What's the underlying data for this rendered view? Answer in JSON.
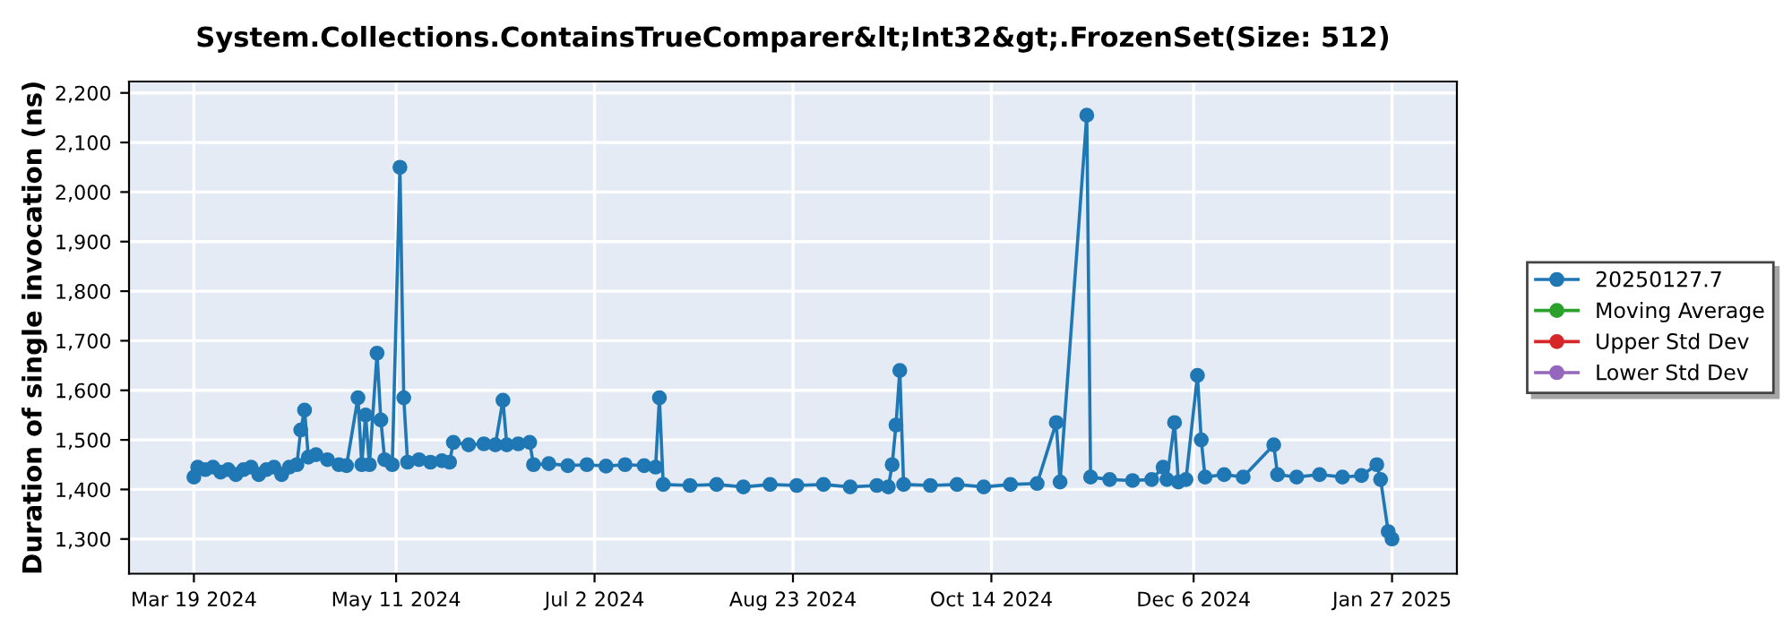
{
  "chart_data": {
    "type": "line",
    "title": "System.Collections.ContainsTrueComparer&lt;Int32&gt;.FrozenSet(Size: 512)",
    "ylabel": "Duration of single invocation (ns)",
    "x": [
      "2024-03-19",
      "2024-03-20",
      "2024-03-22",
      "2024-03-24",
      "2024-03-26",
      "2024-03-28",
      "2024-03-30",
      "2024-04-01",
      "2024-04-03",
      "2024-04-05",
      "2024-04-07",
      "2024-04-09",
      "2024-04-11",
      "2024-04-13",
      "2024-04-15",
      "2024-04-16",
      "2024-04-17",
      "2024-04-18",
      "2024-04-20",
      "2024-04-23",
      "2024-04-26",
      "2024-04-28",
      "2024-05-01",
      "2024-05-02",
      "2024-05-03",
      "2024-05-04",
      "2024-05-06",
      "2024-05-07",
      "2024-05-08",
      "2024-05-10",
      "2024-05-12",
      "2024-05-13",
      "2024-05-14",
      "2024-05-17",
      "2024-05-20",
      "2024-05-23",
      "2024-05-25",
      "2024-05-26",
      "2024-05-30",
      "2024-06-03",
      "2024-06-06",
      "2024-06-08",
      "2024-06-09",
      "2024-06-12",
      "2024-06-15",
      "2024-06-16",
      "2024-06-20",
      "2024-06-25",
      "2024-06-30",
      "2024-07-05",
      "2024-07-10",
      "2024-07-15",
      "2024-07-18",
      "2024-07-19",
      "2024-07-20",
      "2024-07-27",
      "2024-08-03",
      "2024-08-10",
      "2024-08-17",
      "2024-08-24",
      "2024-08-31",
      "2024-09-07",
      "2024-09-14",
      "2024-09-17",
      "2024-09-18",
      "2024-09-19",
      "2024-09-20",
      "2024-09-21",
      "2024-09-28",
      "2024-10-05",
      "2024-10-12",
      "2024-10-19",
      "2024-10-26",
      "2024-10-31",
      "2024-11-01",
      "2024-11-08",
      "2024-11-09",
      "2024-11-14",
      "2024-11-20",
      "2024-11-25",
      "2024-11-28",
      "2024-11-29",
      "2024-12-01",
      "2024-12-02",
      "2024-12-04",
      "2024-12-07",
      "2024-12-08",
      "2024-12-09",
      "2024-12-14",
      "2024-12-19",
      "2024-12-27",
      "2024-12-28",
      "2025-01-02",
      "2025-01-08",
      "2025-01-14",
      "2025-01-19",
      "2025-01-23",
      "2025-01-24",
      "2025-01-26",
      "2025-01-27"
    ],
    "series": [
      {
        "name": "20250127.7",
        "color": "#1f77b4",
        "values": [
          1425,
          1445,
          1440,
          1445,
          1435,
          1440,
          1430,
          1440,
          1445,
          1430,
          1440,
          1445,
          1430,
          1445,
          1450,
          1520,
          1560,
          1465,
          1470,
          1460,
          1450,
          1448,
          1585,
          1450,
          1550,
          1450,
          1675,
          1540,
          1460,
          1450,
          2050,
          1585,
          1455,
          1460,
          1455,
          1458,
          1455,
          1495,
          1490,
          1492,
          1490,
          1580,
          1490,
          1492,
          1495,
          1450,
          1452,
          1448,
          1450,
          1447,
          1450,
          1448,
          1445,
          1585,
          1410,
          1408,
          1410,
          1405,
          1410,
          1408,
          1410,
          1405,
          1408,
          1405,
          1450,
          1530,
          1640,
          1410,
          1408,
          1410,
          1405,
          1410,
          1412,
          1535,
          1415,
          2155,
          1425,
          1420,
          1418,
          1420,
          1445,
          1420,
          1535,
          1415,
          1420,
          1630,
          1500,
          1425,
          1430,
          1425,
          1490,
          1430,
          1425,
          1430,
          1425,
          1428,
          1450,
          1420,
          1315,
          1300
        ]
      },
      {
        "name": "Moving Average",
        "color": "#2ca02c",
        "values": [
          null,
          null,
          null,
          null,
          null,
          null,
          null,
          null,
          null,
          null,
          null,
          null,
          null,
          null,
          null,
          null,
          null,
          null,
          null,
          null,
          null,
          null,
          null,
          null,
          null,
          null,
          null,
          null,
          null,
          null,
          null,
          null,
          null,
          null,
          null,
          null,
          null,
          null,
          null,
          null,
          null,
          null,
          null,
          null,
          null,
          null,
          null,
          null,
          null,
          null,
          null,
          null,
          null,
          null,
          null,
          null,
          null,
          null,
          null,
          null,
          null,
          null,
          null,
          null,
          null,
          null,
          null,
          null,
          null,
          null,
          null,
          null,
          null,
          null,
          null,
          null,
          null,
          null,
          null,
          null,
          null,
          null,
          null,
          null,
          null,
          null,
          null,
          null,
          null,
          null,
          null,
          null,
          null,
          null,
          null,
          null,
          null,
          null,
          null,
          null
        ]
      },
      {
        "name": "Upper Std Dev",
        "color": "#d62728",
        "values": [
          null,
          null,
          null,
          null,
          null,
          null,
          null,
          null,
          null,
          null,
          null,
          null,
          null,
          null,
          null,
          null,
          null,
          null,
          null,
          null,
          null,
          null,
          null,
          null,
          null,
          null,
          null,
          null,
          null,
          null,
          null,
          null,
          null,
          null,
          null,
          null,
          null,
          null,
          null,
          null,
          null,
          null,
          null,
          null,
          null,
          null,
          null,
          null,
          null,
          null,
          null,
          null,
          null,
          null,
          null,
          null,
          null,
          null,
          null,
          null,
          null,
          null,
          null,
          null,
          null,
          null,
          null,
          null,
          null,
          null,
          null,
          null,
          null,
          null,
          null,
          null,
          null,
          null,
          null,
          null,
          null,
          null,
          null,
          null,
          null,
          null,
          null,
          null,
          null,
          null,
          null,
          null,
          null,
          null,
          null,
          null,
          null,
          null,
          null,
          null
        ]
      },
      {
        "name": "Lower Std Dev",
        "color": "#9467bd",
        "values": [
          null,
          null,
          null,
          null,
          null,
          null,
          null,
          null,
          null,
          null,
          null,
          null,
          null,
          null,
          null,
          null,
          null,
          null,
          null,
          null,
          null,
          null,
          null,
          null,
          null,
          null,
          null,
          null,
          null,
          null,
          null,
          null,
          null,
          null,
          null,
          null,
          null,
          null,
          null,
          null,
          null,
          null,
          null,
          null,
          null,
          null,
          null,
          null,
          null,
          null,
          null,
          null,
          null,
          null,
          null,
          null,
          null,
          null,
          null,
          null,
          null,
          null,
          null,
          null,
          null,
          null,
          null,
          null,
          null,
          null,
          null,
          null,
          null,
          null,
          null,
          null,
          null,
          null,
          null,
          null,
          null,
          null,
          null,
          null,
          null,
          null,
          null,
          null,
          null,
          null,
          null,
          null,
          null,
          null,
          null,
          null,
          null,
          null,
          null,
          null
        ]
      }
    ],
    "xlim": [
      "2024-03-02",
      "2025-02-13"
    ],
    "xticks": [
      {
        "value": "2024-03-19",
        "label": "Mar 19 2024"
      },
      {
        "value": "2024-05-11",
        "label": "May 11 2024"
      },
      {
        "value": "2024-07-02",
        "label": "Jul 2 2024"
      },
      {
        "value": "2024-08-23",
        "label": "Aug 23 2024"
      },
      {
        "value": "2024-10-14",
        "label": "Oct 14 2024"
      },
      {
        "value": "2024-12-06",
        "label": "Dec 6 2024"
      },
      {
        "value": "2025-01-27",
        "label": "Jan 27 2025"
      }
    ],
    "ylim": [
      1230,
      2223
    ],
    "yticks": [
      {
        "value": 1300,
        "label": "1,300"
      },
      {
        "value": 1400,
        "label": "1,400"
      },
      {
        "value": 1500,
        "label": "1,500"
      },
      {
        "value": 1600,
        "label": "1,600"
      },
      {
        "value": 1700,
        "label": "1,700"
      },
      {
        "value": 1800,
        "label": "1,800"
      },
      {
        "value": 1900,
        "label": "1,900"
      },
      {
        "value": 2000,
        "label": "2,000"
      },
      {
        "value": 2100,
        "label": "2,100"
      },
      {
        "value": 2200,
        "label": "2,200"
      }
    ],
    "grid": true,
    "legend": "right",
    "marker": "circle",
    "line_style": "solid"
  }
}
